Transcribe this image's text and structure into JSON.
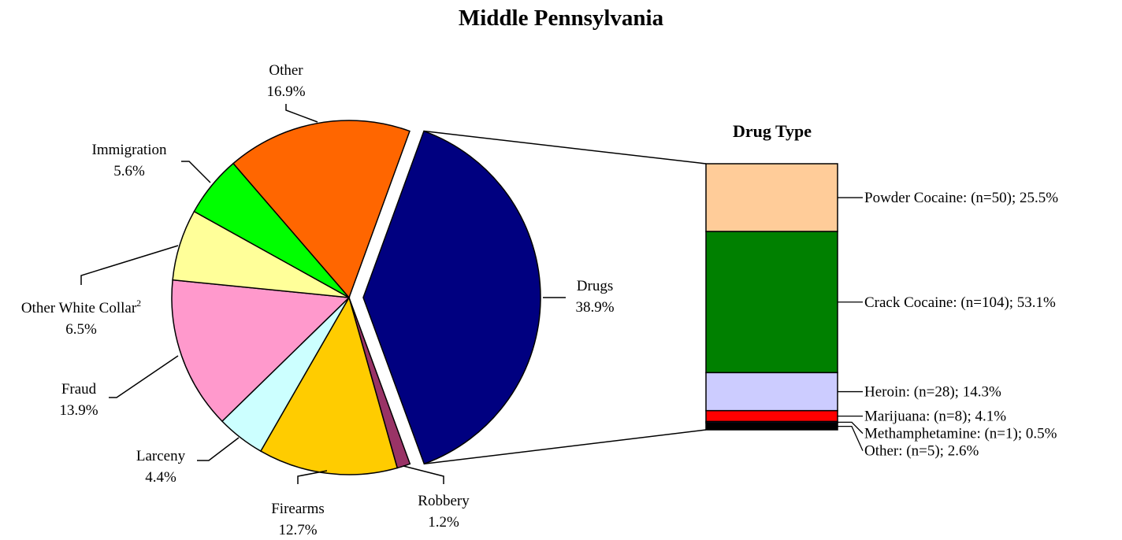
{
  "chart_data": [
    {
      "type": "pie",
      "title": "Middle Pennsylvania",
      "slices": [
        {
          "label": "Drugs",
          "value": 38.9,
          "value_label": "38.9%",
          "color": "#000080",
          "exploded": true
        },
        {
          "label": "Robbery",
          "value": 1.2,
          "value_label": "1.2%",
          "color": "#993366"
        },
        {
          "label": "Firearms",
          "value": 12.7,
          "value_label": "12.7%",
          "color": "#FFCC00"
        },
        {
          "label": "Larceny",
          "value": 4.4,
          "value_label": "4.4%",
          "color": "#CCFFFF"
        },
        {
          "label": "Fraud",
          "value": 13.9,
          "value_label": "13.9%",
          "color": "#FF99CC"
        },
        {
          "label": "Other White Collar",
          "label_superscript": "2",
          "value": 6.5,
          "value_label": "6.5%",
          "color": "#FFFF99"
        },
        {
          "label": "Immigration",
          "value": 5.6,
          "value_label": "5.6%",
          "color": "#00FF00"
        },
        {
          "label": "Other",
          "value": 16.9,
          "value_label": "16.9%",
          "color": "#FF6600"
        }
      ]
    },
    {
      "type": "stacked_bar",
      "title": "Drug Type",
      "segments": [
        {
          "label": "Powder Cocaine: (n=50); 25.5%",
          "value": 25.5,
          "color": "#FFCC99"
        },
        {
          "label": "Crack Cocaine: (n=104); 53.1%",
          "value": 53.1,
          "color": "#008000"
        },
        {
          "label": "Heroin: (n=28); 14.3%",
          "value": 14.3,
          "color": "#CCCCFF"
        },
        {
          "label": "Marijuana: (n=8); 4.1%",
          "value": 4.1,
          "color": "#FF0000"
        },
        {
          "label": "Methamphetamine: (n=1); 0.5%",
          "value": 0.5,
          "color": "#333399"
        },
        {
          "label": "Other: (n=5); 2.6%",
          "value": 2.6,
          "color": "#000000"
        }
      ]
    }
  ]
}
